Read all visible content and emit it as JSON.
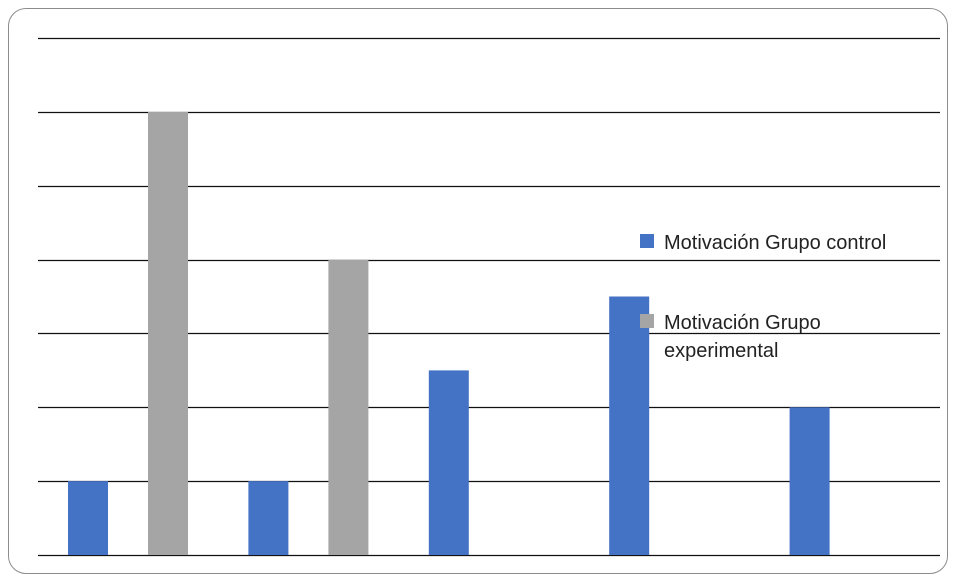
{
  "chart_data": {
    "type": "bar",
    "title": "",
    "xlabel": "",
    "ylabel": "",
    "ylim": [
      0,
      7
    ],
    "gridlines": [
      0,
      1,
      2,
      3,
      4,
      5,
      6,
      7
    ],
    "grid": true,
    "legend_position": "right",
    "categories": [
      "",
      "",
      "",
      "",
      ""
    ],
    "series": [
      {
        "name": "Motivación Grupo control",
        "color": "#4472c4",
        "values": [
          1,
          1,
          2.5,
          3.5,
          2
        ]
      },
      {
        "name": "Motivación Grupo experimental",
        "color": "#a5a5a5",
        "values": [
          6,
          4,
          null,
          null,
          null
        ]
      }
    ]
  },
  "legend": {
    "items": [
      {
        "lines": [
          "Motivación Grupo control"
        ],
        "color": "#4472c4"
      },
      {
        "lines": [
          "Motivación Grupo",
          "experimental"
        ],
        "color": "#a5a5a5"
      }
    ]
  }
}
